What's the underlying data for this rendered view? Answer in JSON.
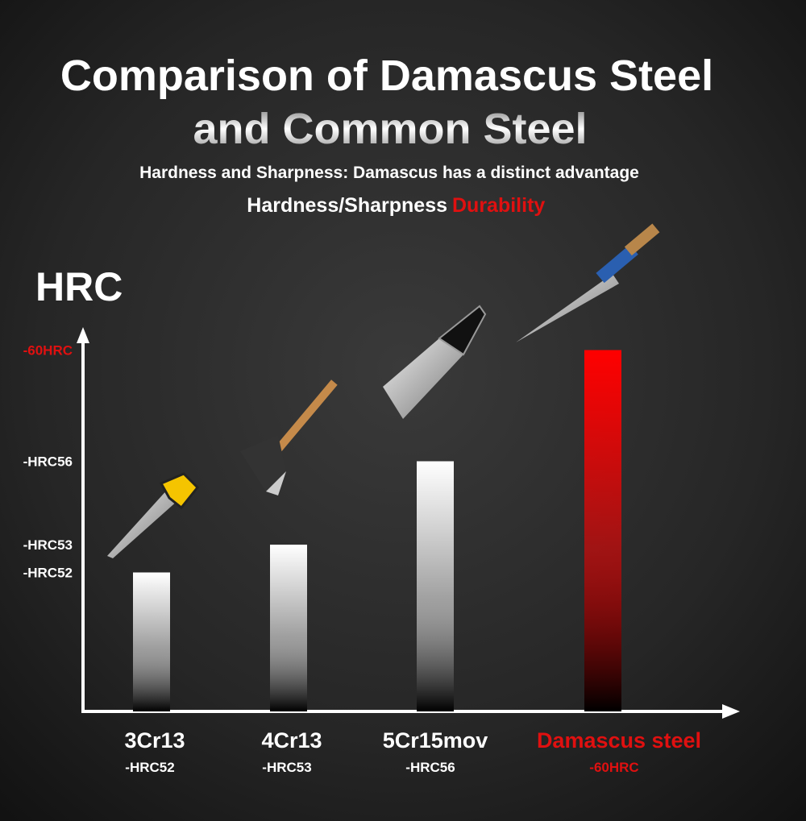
{
  "chart_data": {
    "type": "bar",
    "title_lines": [
      "Comparison of Damascus Steel",
      "and Common Steel"
    ],
    "subtitle": "Hardness and Sharpness: Damascus has a distinct advantage",
    "annotations": [
      "Hardness/Sharpness",
      "Durability"
    ],
    "y_label": "HRC",
    "categories": [
      "3Cr13",
      "4Cr13",
      "5Cr15mov",
      "Damascus steel"
    ],
    "values": [
      52,
      53,
      56,
      60
    ],
    "value_labels": [
      "-HRC52",
      "-HRC53",
      "-HRC56",
      "-60HRC"
    ],
    "colors": [
      "#ffffff",
      "#ffffff",
      "#ffffff",
      "#ff0000"
    ],
    "label_colors": [
      "#ffffff",
      "#ffffff",
      "#ffffff",
      "#e01010"
    ],
    "ylim": [
      47,
      61
    ],
    "yticks": [
      {
        "value": 52,
        "label": "-HRC52"
      },
      {
        "value": 53,
        "label": "-HRC53"
      },
      {
        "value": 56,
        "label": "-HRC56"
      },
      {
        "value": 60,
        "label": "-60HRC"
      }
    ],
    "ytick_colors": [
      "#ffffff",
      "#ffffff",
      "#ffffff",
      "#e01010"
    ]
  }
}
